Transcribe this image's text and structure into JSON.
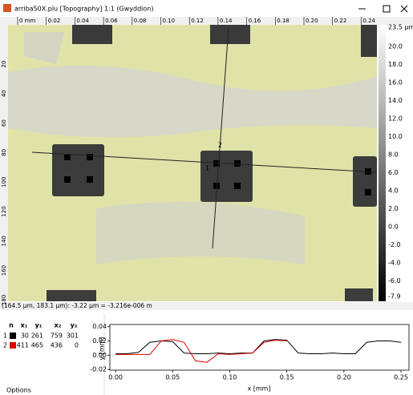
{
  "window": {
    "title": "arriba50X.plu [Topography] 1:1 (Gwyddion)"
  },
  "top_ruler": [
    "0 mm",
    "0.02",
    "0.04",
    "0.06",
    "0.08",
    "0.10",
    "0.12",
    "0.14",
    "0.16",
    "0.18",
    "0.20",
    "0.22",
    "0.24"
  ],
  "left_ruler": [
    "20",
    "40",
    "60",
    "80",
    "100",
    "120",
    "140",
    "160",
    "180"
  ],
  "colorbar": {
    "max_label": "23.5 µm",
    "labels": [
      "20.0",
      "18.0",
      "16.0",
      "14.0",
      "12.0",
      "10.0",
      "8.0",
      "6.0",
      "4.0",
      "2.0",
      "0.0",
      "-2.0",
      "-4.0",
      "-6.0"
    ],
    "min_label": "-7.9"
  },
  "markers": [
    "1",
    "2"
  ],
  "status": "(164.5 µm, 183.1 µm): -3.22 µm = -3.216e-006 m",
  "table": {
    "header": [
      "n",
      "x₁",
      "y₁",
      "x₂",
      "y₂"
    ],
    "rows": [
      [
        "1",
        "30",
        "261",
        "759",
        "301"
      ],
      [
        "2",
        "411",
        "465",
        "436",
        "0"
      ]
    ]
  },
  "options": "Options",
  "chart_data": {
    "type": "line",
    "x_label": "x [mm]",
    "y_label": "y [mm]",
    "x": [
      0,
      0.01,
      0.02,
      0.03,
      0.04,
      0.05,
      0.06,
      0.07,
      0.08,
      0.09,
      0.1,
      0.11,
      0.12,
      0.13,
      0.14,
      0.15,
      0.16,
      0.17,
      0.18,
      0.19,
      0.2,
      0.21,
      0.22,
      0.23,
      0.24,
      0.25
    ],
    "series": [
      {
        "name": "1",
        "color": "#000000",
        "values": [
          0.002,
          0.002,
          0.004,
          0.018,
          0.02,
          0.019,
          0.003,
          0.002,
          0.002,
          0.003,
          0.002,
          0.003,
          0.003,
          0.02,
          0.022,
          0.021,
          0.003,
          0.002,
          0.002,
          0.003,
          0.002,
          0.002,
          0.018,
          0.02,
          0.02,
          0.018
        ]
      },
      {
        "name": "2",
        "color": "#e00000",
        "values": [
          0.001,
          0.001,
          0.001,
          0.001,
          0.02,
          0.022,
          0.018,
          -0.008,
          -0.01,
          0.002,
          0.001,
          0.002,
          0.003,
          0.018,
          0.021,
          0.02,
          null,
          null,
          null,
          null,
          null,
          null,
          null,
          null,
          null,
          null
        ]
      }
    ],
    "xlim": [
      -0.005,
      0.257
    ],
    "ylim": [
      -0.021,
      0.043
    ],
    "xticks": [
      {
        "value": 0,
        "label": "0.00"
      },
      0.05,
      {
        "value": 0.1,
        "label": "0.10"
      },
      0.15,
      {
        "value": 0.2,
        "label": "0.20"
      },
      0.25
    ],
    "yticks": [
      0.04,
      0.02,
      {
        "value": 0,
        "label": "0.00"
      },
      -0.02
    ]
  }
}
